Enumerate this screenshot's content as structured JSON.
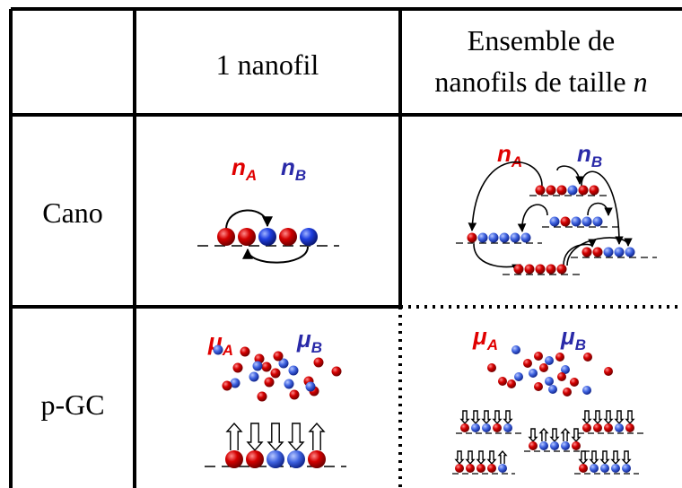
{
  "table": {
    "header_col1": "1 nanofil",
    "header_col2_line1": "Ensemble de",
    "header_col2_line2_prefix": "nanofils de taille ",
    "header_col2_line2_var": "n",
    "row_cano": "Cano",
    "row_pgc": "p-GC"
  },
  "labels": {
    "nA_base": "n",
    "nA_sub": "A",
    "nB_base": "n",
    "nB_sub": "B",
    "muA_base": "μ",
    "muA_sub": "A",
    "muB_base": "μ",
    "muB_sub": "B"
  },
  "colors": {
    "species_A": "#cc0000",
    "species_B": "#1a33cc",
    "label_A": "#e00000",
    "label_B": "#2a2aa8"
  },
  "icons": {
    "atom": "sphere",
    "spin": "up-arrow",
    "swap": "curved-arrow"
  }
}
